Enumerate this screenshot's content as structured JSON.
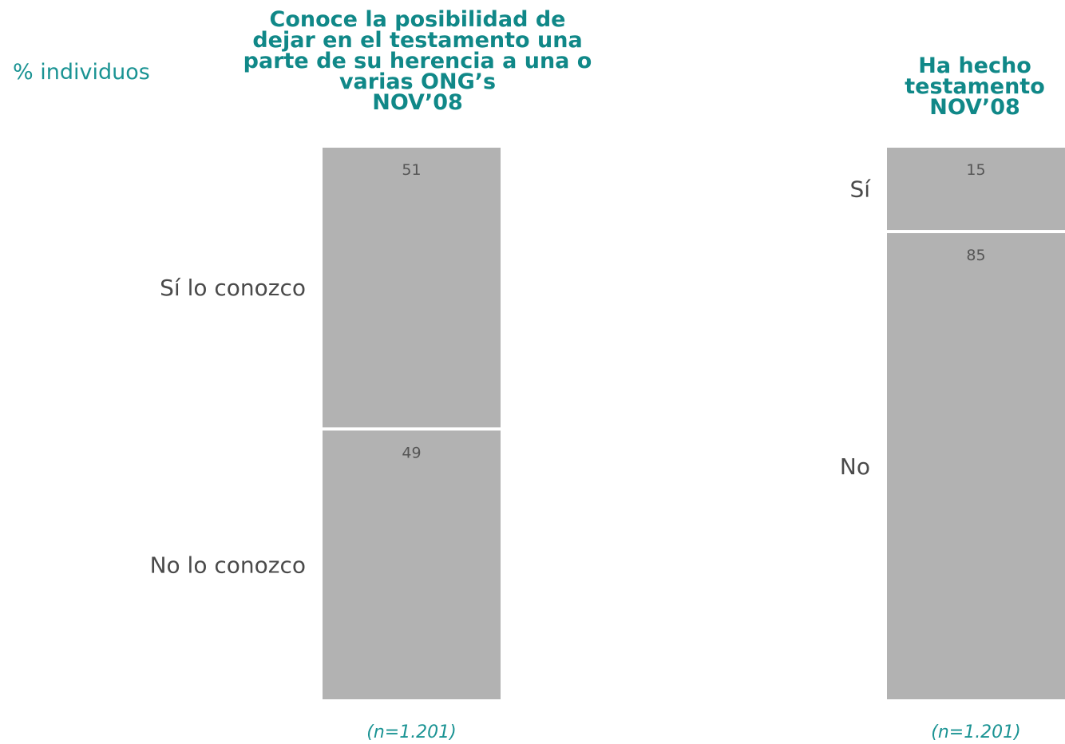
{
  "unit_label": "% individuos",
  "colors": {
    "bar": "#b2b2b2",
    "title": "#108888",
    "accent": "#1a9393",
    "label": "#4a4a4a",
    "value": "#555555"
  },
  "chart_data": [
    {
      "type": "bar",
      "stacked": true,
      "title_lines": [
        "Conoce la posibilidad de",
        "dejar en el testamento una",
        "parte de su herencia a una o",
        "varias ONG’s",
        "NOV’08"
      ],
      "categories": [
        "Sí lo conozco",
        "No lo conozco"
      ],
      "values": [
        51,
        49
      ],
      "footnote": "(n=1.201)",
      "ylim": [
        0,
        100
      ],
      "grid": false,
      "legend": "none"
    },
    {
      "type": "bar",
      "stacked": true,
      "title_lines": [
        "Ha hecho",
        "testamento",
        "NOV’08"
      ],
      "categories": [
        "Sí",
        "No"
      ],
      "values": [
        15,
        85
      ],
      "footnote": "(n=1.201)",
      "ylim": [
        0,
        100
      ],
      "grid": false,
      "legend": "none"
    }
  ]
}
